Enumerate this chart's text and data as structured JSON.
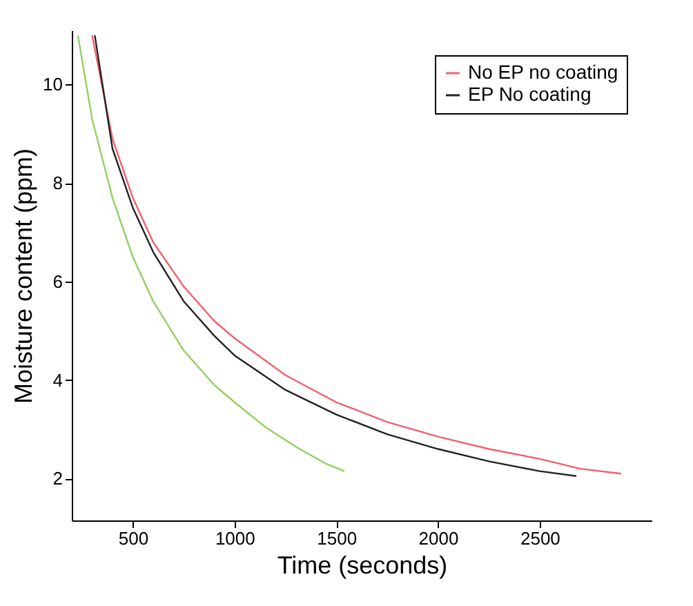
{
  "chart_data": {
    "type": "line",
    "xlabel": "Time (seconds)",
    "ylabel": "Moisture content (ppm)",
    "xlim": [
      200,
      3050
    ],
    "ylim": [
      1.15,
      11.1
    ],
    "xticks": [
      500,
      1000,
      1500,
      2000,
      2500
    ],
    "yticks": [
      2,
      4,
      6,
      8,
      10
    ],
    "legend": "top right",
    "grid": false,
    "series": [
      {
        "name": "No EP no coating",
        "color": "#f0606a",
        "x": [
          300,
          400,
          500,
          600,
          750,
          900,
          1000,
          1250,
          1500,
          1750,
          2000,
          2250,
          2500,
          2700,
          2900
        ],
        "values": [
          11,
          8.9,
          7.7,
          6.8,
          5.9,
          5.2,
          4.85,
          4.1,
          3.55,
          3.15,
          2.85,
          2.6,
          2.4,
          2.2,
          2.1
        ]
      },
      {
        "name": "EP No coating",
        "color": "#222222",
        "x": [
          313,
          400,
          500,
          600,
          750,
          900,
          1000,
          1250,
          1500,
          1750,
          2000,
          2250,
          2500,
          2680
        ],
        "values": [
          11,
          8.7,
          7.5,
          6.6,
          5.6,
          4.9,
          4.5,
          3.8,
          3.3,
          2.9,
          2.6,
          2.35,
          2.15,
          2.05
        ]
      },
      {
        "color": "#90d060",
        "x": [
          230,
          300,
          400,
          500,
          600,
          750,
          900,
          1000,
          1150,
          1300,
          1450,
          1540
        ],
        "values": [
          11,
          9.3,
          7.7,
          6.5,
          5.6,
          4.6,
          3.9,
          3.55,
          3.05,
          2.65,
          2.3,
          2.15
        ]
      }
    ]
  }
}
